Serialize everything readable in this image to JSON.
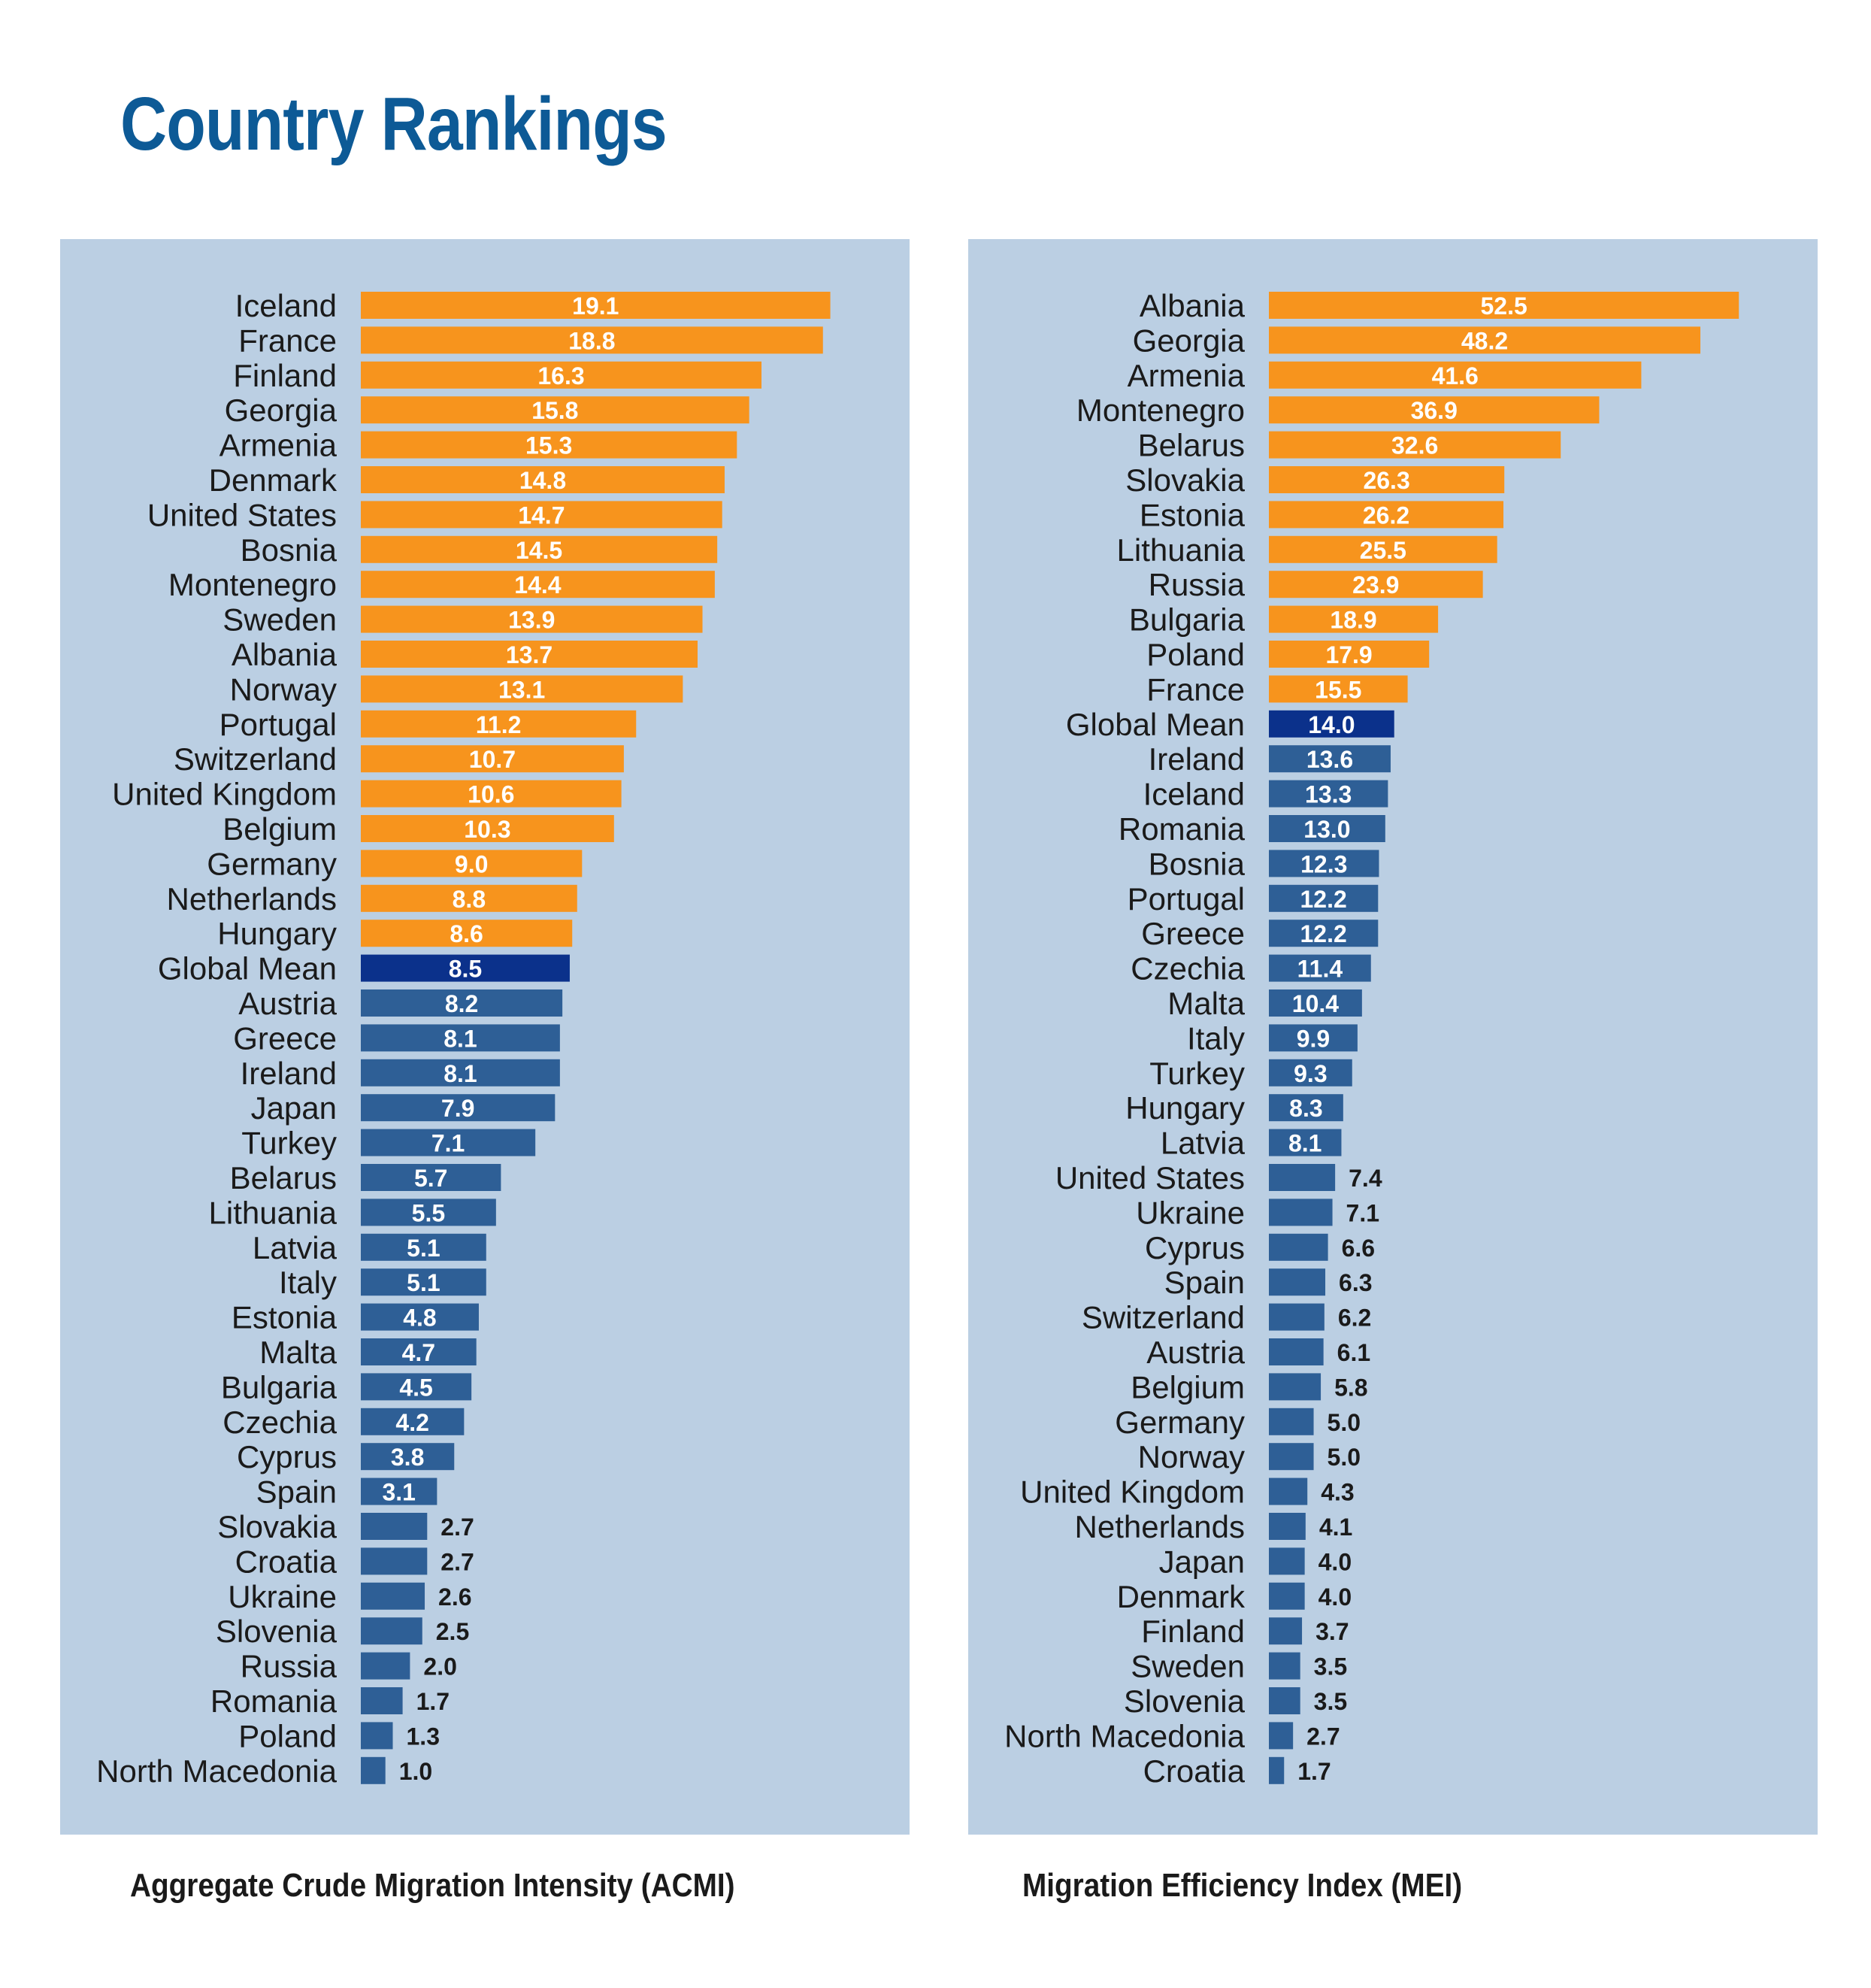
{
  "page": {
    "title": "Country Rankings"
  },
  "colors": {
    "high": "#f7941d",
    "low": "#2e5f96",
    "mean": "#0b318b",
    "panel_background": "#bbcfe3",
    "title": "#0d5a96",
    "inside_label": "#ffffff",
    "outside_label": "#1a1a1a"
  },
  "chart_data": [
    {
      "type": "bar",
      "orientation": "horizontal",
      "title": "Aggregate Crude Migration Intensity (ACMI)",
      "xlim": [
        0,
        20
      ],
      "grid": false,
      "legend": "none",
      "highlight_category": "Global Mean",
      "categories": [
        "Iceland",
        "France",
        "Finland",
        "Georgia",
        "Armenia",
        "Denmark",
        "United States",
        "Bosnia",
        "Montenegro",
        "Sweden",
        "Albania",
        "Norway",
        "Portugal",
        "Switzerland",
        "United Kingdom",
        "Belgium",
        "Germany",
        "Netherlands",
        "Hungary",
        "Global Mean",
        "Austria",
        "Greece",
        "Ireland",
        "Japan",
        "Turkey",
        "Belarus",
        "Lithuania",
        "Latvia",
        "Italy",
        "Estonia",
        "Malta",
        "Bulgaria",
        "Czechia",
        "Cyprus",
        "Spain",
        "Slovakia",
        "Croatia",
        "Ukraine",
        "Slovenia",
        "Russia",
        "Romania",
        "Poland",
        "North Macedonia"
      ],
      "values": [
        19.1,
        18.8,
        16.3,
        15.8,
        15.3,
        14.8,
        14.7,
        14.5,
        14.4,
        13.9,
        13.7,
        13.1,
        11.2,
        10.7,
        10.6,
        10.3,
        9.0,
        8.8,
        8.6,
        8.5,
        8.2,
        8.1,
        8.1,
        7.9,
        7.1,
        5.7,
        5.5,
        5.1,
        5.1,
        4.8,
        4.7,
        4.5,
        4.2,
        3.8,
        3.1,
        2.7,
        2.7,
        2.6,
        2.5,
        2.0,
        1.7,
        1.3,
        1.0
      ],
      "value_labels": [
        "19.1",
        "18.8",
        "16.3",
        "15.8",
        "15.3",
        "14.8",
        "14.7",
        "14.5",
        "14.4",
        "13.9",
        "13.7",
        "13.1",
        "11.2",
        "10.7",
        "10.6",
        "10.3",
        "9.0",
        "8.8",
        "8.6",
        "8.5",
        "8.2",
        "8.1",
        "8.1",
        "7.9",
        "7.1",
        "5.7",
        "5.5",
        "5.1",
        "5.1",
        "4.8",
        "4.7",
        "4.5",
        "4.2",
        "3.8",
        "3.1",
        "2.7",
        "2.7",
        "2.6",
        "2.5",
        "2.0",
        "1.7",
        "1.3",
        "1.0"
      ],
      "inside_label_min": 3.0
    },
    {
      "type": "bar",
      "orientation": "horizontal",
      "title": "Migration Efficiency Index (MEI)",
      "xlim": [
        0,
        55
      ],
      "grid": false,
      "legend": "none",
      "highlight_category": "Global Mean",
      "categories": [
        "Albania",
        "Georgia",
        "Armenia",
        "Montenegro",
        "Belarus",
        "Slovakia",
        "Estonia",
        "Lithuania",
        "Russia",
        "Bulgaria",
        "Poland",
        "France",
        "Global Mean",
        "Ireland",
        "Iceland",
        "Romania",
        "Bosnia",
        "Portugal",
        "Greece",
        "Czechia",
        "Malta",
        "Italy",
        "Turkey",
        "Hungary",
        "Latvia",
        "United States",
        "Ukraine",
        "Cyprus",
        "Spain",
        "Switzerland",
        "Austria",
        "Belgium",
        "Germany",
        "Norway",
        "United Kingdom",
        "Netherlands",
        "Japan",
        "Denmark",
        "Finland",
        "Sweden",
        "Slovenia",
        "North Macedonia",
        "Croatia"
      ],
      "values": [
        52.5,
        48.2,
        41.6,
        36.9,
        32.6,
        26.3,
        26.2,
        25.5,
        23.9,
        18.9,
        17.9,
        15.5,
        14.0,
        13.6,
        13.3,
        13.0,
        12.3,
        12.2,
        12.2,
        11.4,
        10.4,
        9.9,
        9.3,
        8.3,
        8.1,
        7.4,
        7.1,
        6.6,
        6.3,
        6.2,
        6.1,
        5.8,
        5.0,
        5.0,
        4.3,
        4.1,
        4.0,
        4.0,
        3.7,
        3.5,
        3.5,
        2.7,
        1.7
      ],
      "value_labels": [
        "52.5",
        "48.2",
        "41.6",
        "36.9",
        "32.6",
        "26.3",
        "26.2",
        "25.5",
        "23.9",
        "18.9",
        "17.9",
        "15.5",
        "14.0",
        "13.6",
        "13.3",
        "13.0",
        "12.3",
        "12.2",
        "12.2",
        "11.4",
        "10.4",
        "9.9",
        "9.3",
        "8.3",
        "8.1",
        "7.4",
        "7.1",
        "6.6",
        "6.3",
        "6.2",
        "6.1",
        "5.8",
        "5.0",
        "5.0",
        "4.3",
        "4.1",
        "4.0",
        "4.0",
        "3.7",
        "3.5",
        "3.5",
        "2.7",
        "1.7"
      ],
      "inside_label_min": 8.0
    }
  ]
}
